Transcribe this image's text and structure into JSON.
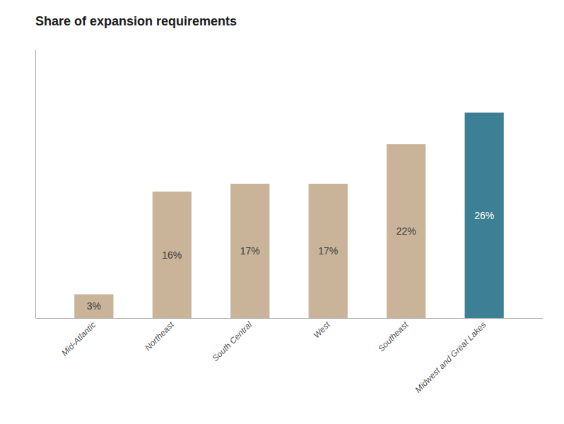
{
  "chart_data": {
    "type": "bar",
    "title": "Share of expansion requirements",
    "categories": [
      "Mid-Atlantic",
      "Northeast",
      "South Central",
      "West",
      "Southeast",
      "Midwest and Great Lakes"
    ],
    "values": [
      3,
      16,
      17,
      17,
      22,
      26
    ],
    "value_labels": [
      "3%",
      "16%",
      "17%",
      "17%",
      "22%",
      "26%"
    ],
    "colors": [
      "#c9b49a",
      "#c9b49a",
      "#c9b49a",
      "#c9b49a",
      "#c9b49a",
      "#3d7f94"
    ],
    "ylim": [
      0,
      34
    ],
    "data_labels": true,
    "tick_labels": "x"
  }
}
